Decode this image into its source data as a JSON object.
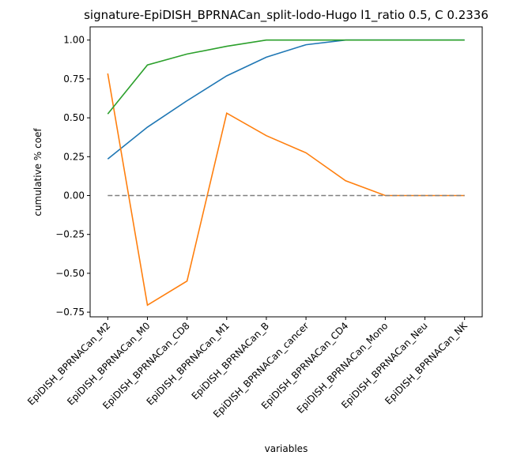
{
  "chart_data": {
    "type": "line",
    "title": "signature-EpiDISH_BPRNACan_split-lodo-Hugo l1_ratio 0.5, C 0.2336",
    "xlabel": "variables",
    "ylabel": "cumulative % coef",
    "categories": [
      "EpiDISH_BPRNACan_M2",
      "EpiDISH_BPRNACan_M0",
      "EpiDISH_BPRNACan_CD8",
      "EpiDISH_BPRNACan_M1",
      "EpiDISH_BPRNACan_B",
      "EpiDISH_BPRNACan_cancer",
      "EpiDISH_BPRNACan_CD4",
      "EpiDISH_BPRNACan_Mono",
      "EpiDISH_BPRNACan_Neu",
      "EpiDISH_BPRNACan_NK"
    ],
    "ylim": [
      -0.78,
      1.085
    ],
    "yticks": [
      -0.75,
      -0.5,
      -0.25,
      0.0,
      0.25,
      0.5,
      0.75,
      1.0
    ],
    "ytick_labels": [
      "−0.75",
      "−0.50",
      "−0.25",
      "0.00",
      "0.25",
      "0.50",
      "0.75",
      "1.00"
    ],
    "grid": false,
    "series": [
      {
        "color": "#1f77b4",
        "style": "solid",
        "values": [
          0.235,
          0.44,
          0.61,
          0.77,
          0.89,
          0.97,
          1.0,
          1.0,
          1.0,
          1.0
        ]
      },
      {
        "color": "#ff7f0e",
        "style": "solid",
        "values": [
          0.785,
          -0.705,
          -0.55,
          0.53,
          0.385,
          0.275,
          0.095,
          0.0,
          0.0,
          0.0
        ]
      },
      {
        "color": "#2ca02c",
        "style": "solid",
        "values": [
          0.525,
          0.84,
          0.91,
          0.96,
          1.0,
          1.0,
          1.0,
          1.0,
          1.0,
          1.0
        ]
      },
      {
        "color": "#808080",
        "style": "dashed",
        "values": [
          0,
          0,
          0,
          0,
          0,
          0,
          0,
          0,
          0,
          0
        ]
      }
    ]
  }
}
